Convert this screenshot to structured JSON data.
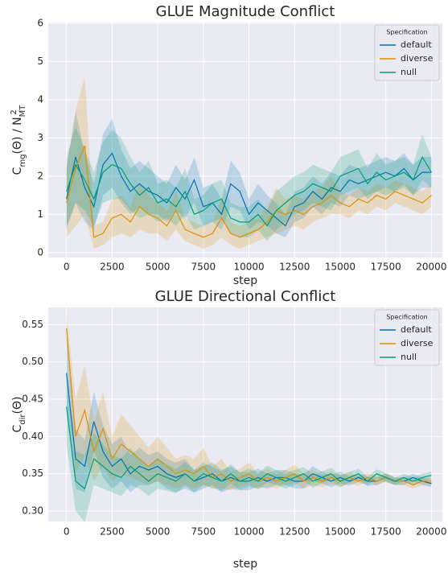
{
  "chart_data": [
    {
      "type": "line",
      "title": "GLUE Magnitude Conflict",
      "x_label": "step",
      "y_label": [
        {
          "text": "C"
        },
        {
          "text": "mg",
          "shift": "sub"
        },
        {
          "text": "(Θ) / N"
        },
        {
          "text": "MT",
          "shift": "sub"
        },
        {
          "text": "2",
          "shift": "super"
        }
      ],
      "x": [
        0,
        500,
        1000,
        1500,
        2000,
        2500,
        3000,
        3500,
        4000,
        4500,
        5000,
        5500,
        6000,
        6500,
        7000,
        7500,
        8000,
        8500,
        9000,
        9500,
        10000,
        10500,
        11000,
        11500,
        12000,
        12500,
        13000,
        13500,
        14000,
        14500,
        15000,
        15500,
        16000,
        16500,
        17000,
        17500,
        18000,
        18500,
        19000,
        19500,
        20000
      ],
      "xlim": [
        -1000,
        20600
      ],
      "ylim": [
        -0.13,
        6.02
      ],
      "xticks": [
        0,
        2500,
        5000,
        7500,
        10000,
        12500,
        15000,
        17500,
        20000
      ],
      "yticks": [
        0,
        1,
        2,
        3,
        4,
        5,
        6
      ],
      "grid": true,
      "legend": "upper right",
      "legend_title": "Specification",
      "series": [
        {
          "name": "default",
          "color": "#0173b2",
          "values": [
            1.4,
            2.5,
            1.7,
            1.2,
            2.3,
            2.6,
            2.0,
            1.6,
            1.8,
            1.6,
            1.5,
            1.3,
            1.7,
            1.4,
            1.9,
            1.2,
            1.3,
            1.0,
            1.8,
            1.6,
            1.0,
            1.3,
            1.1,
            0.9,
            0.7,
            1.2,
            1.3,
            1.6,
            1.4,
            1.7,
            1.6,
            1.9,
            1.8,
            1.9,
            2.0,
            2.1,
            2.0,
            2.2,
            1.9,
            2.1,
            2.1
          ],
          "ci": [
            0.8,
            1.2,
            0.9,
            0.6,
            0.8,
            0.9,
            0.7,
            0.6,
            0.6,
            0.6,
            0.5,
            0.5,
            0.6,
            0.5,
            0.6,
            0.5,
            0.5,
            0.4,
            0.6,
            0.5,
            0.4,
            0.5,
            0.4,
            0.4,
            0.3,
            0.4,
            0.4,
            0.4,
            0.4,
            0.4,
            0.4,
            0.4,
            0.4,
            0.4,
            0.4,
            0.4,
            0.4,
            0.4,
            0.4,
            0.4,
            0.4
          ]
        },
        {
          "name": "diverse",
          "color": "#de8f05",
          "values": [
            1.3,
            2.2,
            2.8,
            0.4,
            0.5,
            0.9,
            1.0,
            0.8,
            1.2,
            1.0,
            0.9,
            0.7,
            1.1,
            0.6,
            0.5,
            0.4,
            0.5,
            0.9,
            0.5,
            0.4,
            0.5,
            0.6,
            0.8,
            1.1,
            1.0,
            1.1,
            1.0,
            1.2,
            1.3,
            1.5,
            1.3,
            1.2,
            1.4,
            1.3,
            1.5,
            1.4,
            1.6,
            1.5,
            1.4,
            1.3,
            1.5
          ],
          "ci": [
            0.9,
            1.5,
            1.8,
            0.3,
            0.3,
            0.5,
            0.5,
            0.4,
            0.6,
            0.5,
            0.4,
            0.4,
            0.5,
            0.3,
            0.3,
            0.3,
            0.3,
            0.5,
            0.3,
            0.3,
            0.3,
            0.3,
            0.4,
            0.6,
            0.4,
            0.4,
            0.4,
            0.4,
            0.4,
            0.5,
            0.3,
            0.3,
            0.3,
            0.3,
            0.3,
            0.3,
            0.3,
            0.3,
            0.3,
            0.3,
            0.3
          ]
        },
        {
          "name": "null",
          "color": "#029e73",
          "values": [
            1.6,
            2.3,
            1.9,
            1.4,
            2.1,
            2.3,
            2.2,
            1.8,
            1.5,
            1.7,
            1.3,
            1.4,
            1.2,
            1.6,
            1.0,
            1.1,
            1.3,
            1.4,
            0.9,
            0.8,
            0.8,
            1.0,
            0.7,
            1.1,
            1.3,
            1.5,
            1.6,
            1.8,
            1.7,
            1.6,
            2.0,
            2.1,
            2.2,
            1.8,
            2.1,
            1.9,
            2.0,
            2.1,
            1.9,
            2.5,
            2.1
          ],
          "ci": [
            0.9,
            1.0,
            0.8,
            0.7,
            0.8,
            0.9,
            0.8,
            0.7,
            0.6,
            0.7,
            0.5,
            0.5,
            0.5,
            0.6,
            0.4,
            0.4,
            0.5,
            0.5,
            0.4,
            0.4,
            0.4,
            0.4,
            0.4,
            0.5,
            0.5,
            0.5,
            0.5,
            0.5,
            0.5,
            0.5,
            0.5,
            0.5,
            0.5,
            0.4,
            0.5,
            0.4,
            0.4,
            0.4,
            0.4,
            0.6,
            0.4
          ]
        }
      ]
    },
    {
      "type": "line",
      "title": "GLUE Directional Conflict",
      "x_label": "step",
      "y_label": [
        {
          "text": "C"
        },
        {
          "text": "dir",
          "shift": "sub"
        },
        {
          "text": "(Θ)"
        }
      ],
      "x": [
        0,
        500,
        1000,
        1500,
        2000,
        2500,
        3000,
        3500,
        4000,
        4500,
        5000,
        5500,
        6000,
        6500,
        7000,
        7500,
        8000,
        8500,
        9000,
        9500,
        10000,
        10500,
        11000,
        11500,
        12000,
        12500,
        13000,
        13500,
        14000,
        14500,
        15000,
        15500,
        16000,
        16500,
        17000,
        17500,
        18000,
        18500,
        19000,
        19500,
        20000
      ],
      "xlim": [
        -1000,
        20600
      ],
      "ylim": [
        0.286,
        0.573
      ],
      "xticks": [
        0,
        2500,
        5000,
        7500,
        10000,
        12500,
        15000,
        17500,
        20000
      ],
      "yticks": [
        {
          "value": 0.3,
          "label": "0.30"
        },
        {
          "value": 0.35,
          "label": "0.35"
        },
        {
          "value": 0.4,
          "label": "0.40"
        },
        {
          "value": 0.45,
          "label": "0.45"
        },
        {
          "value": 0.5,
          "label": "0.50"
        },
        {
          "value": 0.55,
          "label": "0.55"
        }
      ],
      "grid": true,
      "legend": "upper right",
      "legend_title": "Specification",
      "series": [
        {
          "name": "default",
          "color": "#0173b2",
          "values": [
            0.485,
            0.37,
            0.36,
            0.42,
            0.38,
            0.36,
            0.37,
            0.35,
            0.36,
            0.355,
            0.36,
            0.35,
            0.345,
            0.35,
            0.34,
            0.345,
            0.35,
            0.34,
            0.345,
            0.34,
            0.34,
            0.345,
            0.34,
            0.345,
            0.345,
            0.34,
            0.34,
            0.35,
            0.345,
            0.34,
            0.345,
            0.34,
            0.345,
            0.34,
            0.34,
            0.345,
            0.34,
            0.34,
            0.345,
            0.34,
            0.337
          ],
          "ci": [
            0.05,
            0.04,
            0.035,
            0.04,
            0.035,
            0.03,
            0.03,
            0.025,
            0.025,
            0.02,
            0.02,
            0.02,
            0.02,
            0.02,
            0.015,
            0.015,
            0.015,
            0.015,
            0.015,
            0.012,
            0.012,
            0.012,
            0.01,
            0.01,
            0.01,
            0.01,
            0.01,
            0.01,
            0.008,
            0.008,
            0.008,
            0.006,
            0.006,
            0.006,
            0.005,
            0.005,
            0.005,
            0.005,
            0.005,
            0.005,
            0.005
          ]
        },
        {
          "name": "diverse",
          "color": "#de8f05",
          "values": [
            0.545,
            0.4,
            0.435,
            0.38,
            0.41,
            0.37,
            0.39,
            0.38,
            0.37,
            0.36,
            0.37,
            0.36,
            0.35,
            0.355,
            0.35,
            0.36,
            0.345,
            0.35,
            0.34,
            0.345,
            0.35,
            0.34,
            0.345,
            0.34,
            0.345,
            0.35,
            0.34,
            0.345,
            0.34,
            0.345,
            0.34,
            0.345,
            0.34,
            0.345,
            0.34,
            0.345,
            0.34,
            0.34,
            0.335,
            0.34,
            0.34
          ],
          "ci": [
            0.02,
            0.05,
            0.06,
            0.04,
            0.05,
            0.03,
            0.04,
            0.035,
            0.03,
            0.025,
            0.03,
            0.025,
            0.02,
            0.02,
            0.02,
            0.025,
            0.015,
            0.02,
            0.012,
            0.012,
            0.015,
            0.01,
            0.012,
            0.01,
            0.01,
            0.012,
            0.01,
            0.01,
            0.008,
            0.008,
            0.008,
            0.008,
            0.006,
            0.006,
            0.006,
            0.006,
            0.005,
            0.005,
            0.005,
            0.005,
            0.005
          ]
        },
        {
          "name": "null",
          "color": "#029e73",
          "values": [
            0.44,
            0.34,
            0.33,
            0.37,
            0.36,
            0.35,
            0.345,
            0.36,
            0.35,
            0.34,
            0.35,
            0.345,
            0.34,
            0.35,
            0.34,
            0.35,
            0.345,
            0.34,
            0.35,
            0.34,
            0.345,
            0.34,
            0.35,
            0.345,
            0.34,
            0.345,
            0.35,
            0.34,
            0.345,
            0.35,
            0.34,
            0.345,
            0.35,
            0.34,
            0.35,
            0.345,
            0.34,
            0.345,
            0.34,
            0.345,
            0.348
          ],
          "ci": [
            0.05,
            0.04,
            0.045,
            0.035,
            0.03,
            0.025,
            0.025,
            0.025,
            0.02,
            0.02,
            0.02,
            0.018,
            0.016,
            0.016,
            0.015,
            0.015,
            0.014,
            0.013,
            0.013,
            0.012,
            0.012,
            0.011,
            0.011,
            0.01,
            0.01,
            0.01,
            0.009,
            0.009,
            0.008,
            0.008,
            0.008,
            0.007,
            0.007,
            0.006,
            0.006,
            0.006,
            0.005,
            0.005,
            0.005,
            0.005,
            0.005
          ]
        }
      ]
    }
  ]
}
